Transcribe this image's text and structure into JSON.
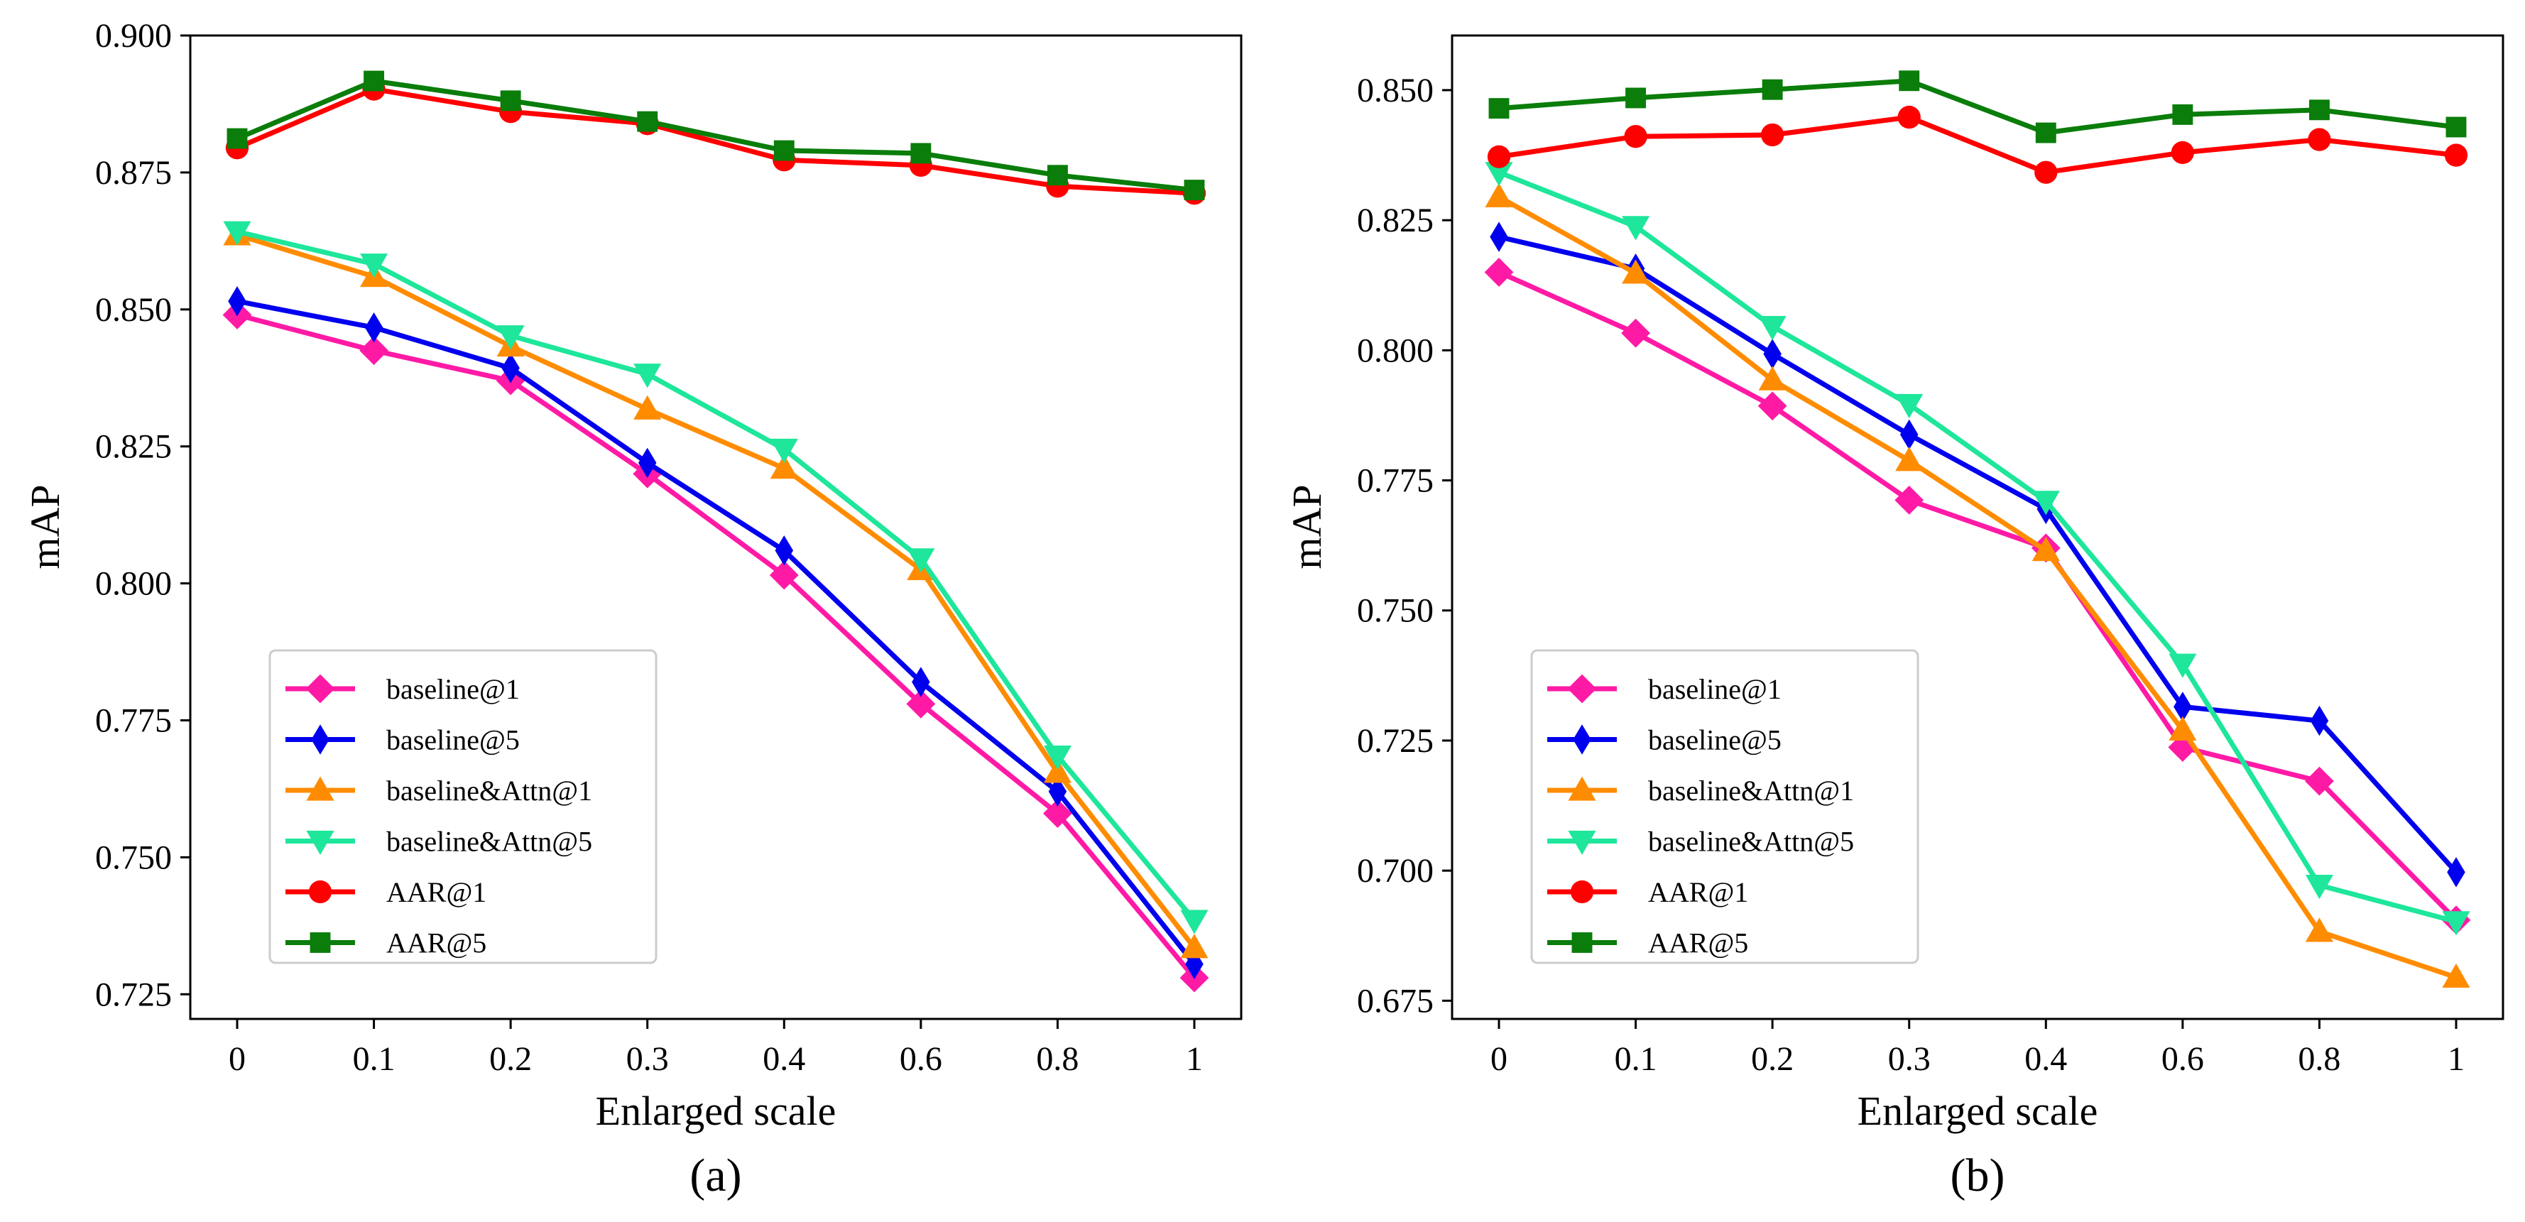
{
  "chart_data": [
    {
      "type": "line",
      "panel": "(a)",
      "caption": "(a)",
      "xlabel": "Enlarged scale",
      "ylabel": "mAP",
      "categories": [
        "0",
        "0.1",
        "0.2",
        "0.3",
        "0.4",
        "0.6",
        "0.8",
        "1"
      ],
      "ylim": [
        0.7205,
        0.9
      ],
      "yticks": [
        "0.725",
        "0.750",
        "0.775",
        "0.800",
        "0.825",
        "0.850",
        "0.875",
        "0.900"
      ],
      "grid": false,
      "legend_position": "lower-left",
      "series": [
        {
          "name": "baseline@1",
          "color": "#ff1aa6",
          "marker": "diamond",
          "values": [
            0.849,
            0.8425,
            0.837,
            0.82,
            0.8015,
            0.778,
            0.758,
            0.728
          ]
        },
        {
          "name": "baseline@5",
          "color": "#0000ee",
          "marker": "thin-diamond",
          "values": [
            0.8515,
            0.8467,
            0.8393,
            0.822,
            0.806,
            0.782,
            0.762,
            0.7305
          ]
        },
        {
          "name": "baseline&Attn@1",
          "color": "#ff8c00",
          "marker": "triangle-up",
          "values": [
            0.8636,
            0.856,
            0.8433,
            0.8318,
            0.821,
            0.8025,
            0.7655,
            0.7335
          ]
        },
        {
          "name": "baseline&Attn@5",
          "color": "#1ee69a",
          "marker": "triangle-down",
          "values": [
            0.8642,
            0.8583,
            0.8452,
            0.8382,
            0.8245,
            0.8045,
            0.7685,
            0.7385
          ]
        },
        {
          "name": "AAR@1",
          "color": "#ff0000",
          "marker": "circle",
          "values": [
            0.8795,
            0.8902,
            0.8861,
            0.8839,
            0.8773,
            0.8763,
            0.8725,
            0.8712
          ]
        },
        {
          "name": "AAR@5",
          "color": "#0a7d0a",
          "marker": "square",
          "values": [
            0.8812,
            0.8917,
            0.8881,
            0.8843,
            0.879,
            0.8785,
            0.8745,
            0.8718
          ]
        }
      ]
    },
    {
      "type": "line",
      "panel": "(b)",
      "caption": "(b)",
      "xlabel": "Enlarged scale",
      "ylabel": "mAP",
      "categories": [
        "0",
        "0.1",
        "0.2",
        "0.3",
        "0.4",
        "0.6",
        "0.8",
        "1"
      ],
      "ylim": [
        0.6715,
        0.8605
      ],
      "yticks": [
        "0.675",
        "0.700",
        "0.725",
        "0.750",
        "0.775",
        "0.800",
        "0.825",
        "0.850"
      ],
      "grid": false,
      "legend_position": "lower-left",
      "series": [
        {
          "name": "baseline@1",
          "color": "#ff1aa6",
          "marker": "diamond",
          "values": [
            0.815,
            0.8033,
            0.7893,
            0.7712,
            0.762,
            0.7237,
            0.7172,
            0.6905
          ]
        },
        {
          "name": "baseline@5",
          "color": "#0000ee",
          "marker": "thin-diamond",
          "values": [
            0.8218,
            0.8157,
            0.7993,
            0.7838,
            0.7695,
            0.7315,
            0.7288,
            0.6997
          ]
        },
        {
          "name": "baseline&Attn@1",
          "color": "#ff8c00",
          "marker": "triangle-up",
          "values": [
            0.8295,
            0.8148,
            0.7943,
            0.7788,
            0.7615,
            0.727,
            0.6883,
            0.6795
          ]
        },
        {
          "name": "baseline&Attn@5",
          "color": "#1ee69a",
          "marker": "triangle-down",
          "values": [
            0.8342,
            0.8238,
            0.8046,
            0.7896,
            0.771,
            0.7397,
            0.6972,
            0.6902
          ]
        },
        {
          "name": "AAR@1",
          "color": "#ff0000",
          "marker": "circle",
          "values": [
            0.8372,
            0.8411,
            0.8414,
            0.8448,
            0.8342,
            0.838,
            0.8405,
            0.8375
          ]
        },
        {
          "name": "AAR@5",
          "color": "#0a7d0a",
          "marker": "square",
          "values": [
            0.8465,
            0.8485,
            0.8501,
            0.8518,
            0.8418,
            0.8453,
            0.8462,
            0.8429
          ]
        }
      ]
    }
  ]
}
